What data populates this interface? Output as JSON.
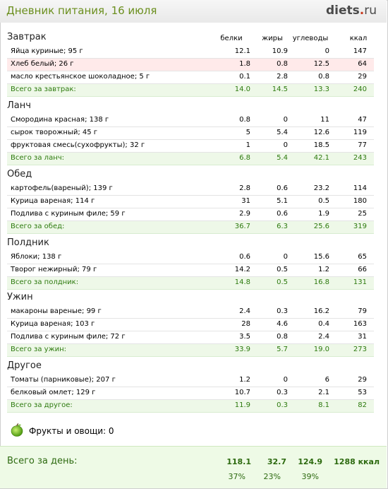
{
  "header": {
    "title": "Дневник питания, 16 июля",
    "logo_main": "diets",
    "logo_dot": ".",
    "logo_tld": "ru"
  },
  "columns": {
    "protein": "белки",
    "fat": "жиры",
    "carbs": "углеводы",
    "kcal": "ккал"
  },
  "sections": [
    {
      "title": "Завтрак",
      "items": [
        {
          "name": "Яйца куриные; 95 г",
          "p": "12.1",
          "f": "10.9",
          "c": "0",
          "k": "147"
        },
        {
          "name": "Хлеб белый; 26 г",
          "p": "1.8",
          "f": "0.8",
          "c": "12.5",
          "k": "64"
        },
        {
          "name": "масло крестьянское шоколадное; 5 г",
          "p": "0.1",
          "f": "2.8",
          "c": "0.8",
          "k": "29"
        }
      ],
      "total": {
        "name": "Всего за завтрак:",
        "p": "14.0",
        "f": "14.5",
        "c": "13.3",
        "k": "240"
      }
    },
    {
      "title": "Ланч",
      "items": [
        {
          "name": "Смородина красная; 138 г",
          "p": "0.8",
          "f": "0",
          "c": "11",
          "k": "47"
        },
        {
          "name": "сырок творожный; 45 г",
          "p": "5",
          "f": "5.4",
          "c": "12.6",
          "k": "119"
        },
        {
          "name": "фруктовая смесь(сухофрукты); 32 г",
          "p": "1",
          "f": "0",
          "c": "18.5",
          "k": "77"
        }
      ],
      "total": {
        "name": "Всего за ланч:",
        "p": "6.8",
        "f": "5.4",
        "c": "42.1",
        "k": "243"
      }
    },
    {
      "title": "Обед",
      "items": [
        {
          "name": "картофель(вареный); 139 г",
          "p": "2.8",
          "f": "0.6",
          "c": "23.2",
          "k": "114"
        },
        {
          "name": "Курица вареная; 114 г",
          "p": "31",
          "f": "5.1",
          "c": "0.5",
          "k": "180"
        },
        {
          "name": "Подлива с куриным филе; 59 г",
          "p": "2.9",
          "f": "0.6",
          "c": "1.9",
          "k": "25"
        }
      ],
      "total": {
        "name": "Всего за обед:",
        "p": "36.7",
        "f": "6.3",
        "c": "25.6",
        "k": "319"
      }
    },
    {
      "title": "Полдник",
      "items": [
        {
          "name": "Яблоки; 138 г",
          "p": "0.6",
          "f": "0",
          "c": "15.6",
          "k": "65"
        },
        {
          "name": "Творог нежирный; 79 г",
          "p": "14.2",
          "f": "0.5",
          "c": "1.2",
          "k": "66"
        }
      ],
      "total": {
        "name": "Всего за полдник:",
        "p": "14.8",
        "f": "0.5",
        "c": "16.8",
        "k": "131"
      }
    },
    {
      "title": "Ужин",
      "items": [
        {
          "name": "макароны вареные; 99 г",
          "p": "2.4",
          "f": "0.3",
          "c": "16.2",
          "k": "79"
        },
        {
          "name": "Курица вареная; 103 г",
          "p": "28",
          "f": "4.6",
          "c": "0.4",
          "k": "163"
        },
        {
          "name": "Подлива с куриным филе; 72 г",
          "p": "3.5",
          "f": "0.8",
          "c": "2.4",
          "k": "31"
        }
      ],
      "total": {
        "name": "Всего за ужин:",
        "p": "33.9",
        "f": "5.7",
        "c": "19.0",
        "k": "273"
      }
    },
    {
      "title": "Другое",
      "items": [
        {
          "name": "Томаты (парниковые); 207 г",
          "p": "1.2",
          "f": "0",
          "c": "6",
          "k": "29"
        },
        {
          "name": "белковый омлет; 129 г",
          "p": "10.7",
          "f": "0.3",
          "c": "2.1",
          "k": "53"
        }
      ],
      "total": {
        "name": "Всего за другое:",
        "p": "11.9",
        "f": "0.3",
        "c": "8.1",
        "k": "82"
      }
    }
  ],
  "fruits": {
    "label": "Фрукты и овощи: 0",
    "icon": "apple-icon"
  },
  "day_total": {
    "title": "Всего за день:",
    "p": "118.1",
    "f": "32.7",
    "c": "124.9",
    "k": "1288 ккал",
    "p_pct": "37%",
    "f_pct": "23%",
    "c_pct": "39%"
  }
}
